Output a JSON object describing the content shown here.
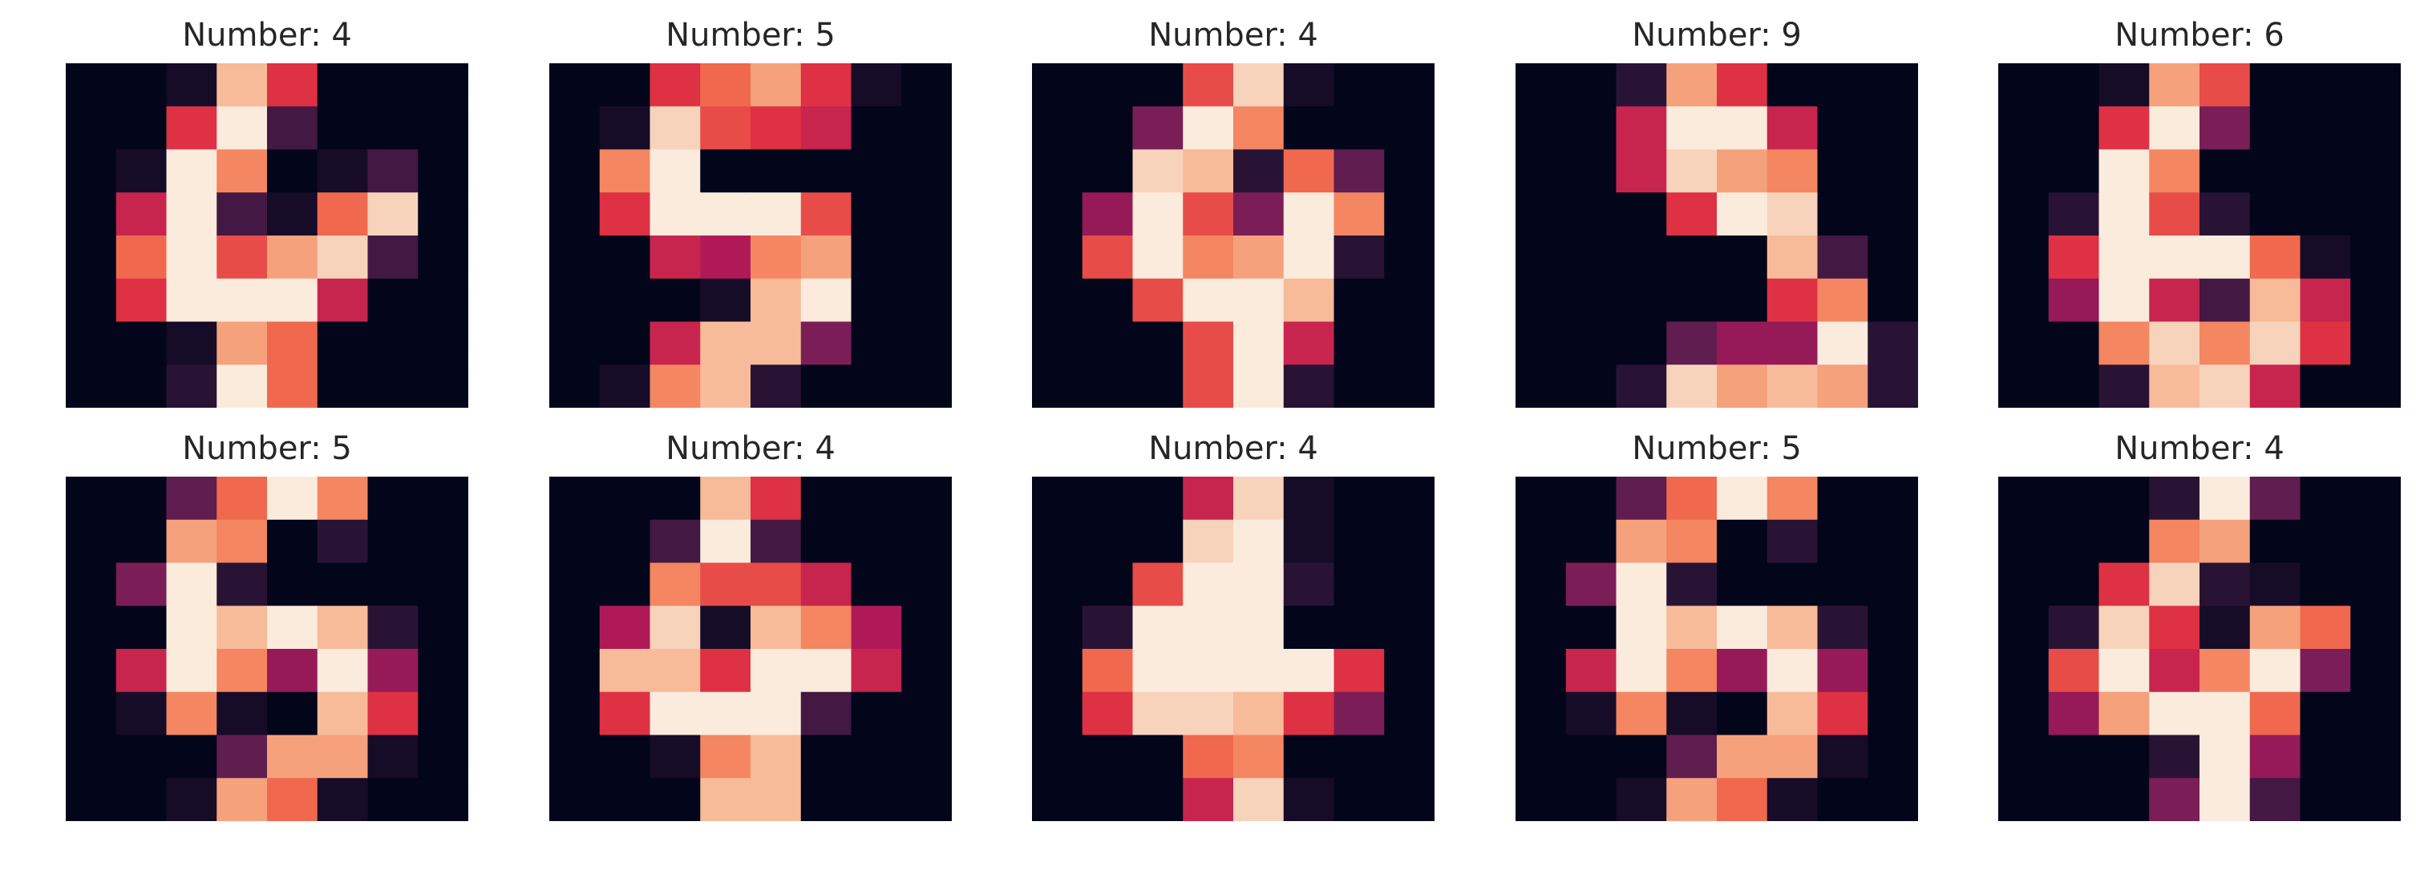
{
  "colors": {
    "colormap": "rocket",
    "stops": [
      "#03051a",
      "#2e1539",
      "#701f57",
      "#ad1759",
      "#e13342",
      "#f37651",
      "#f6b48f",
      "#faebdd"
    ]
  },
  "chart_data": [
    {
      "type": "heatmap",
      "title": "Number: 4",
      "rows": 8,
      "cols": 8,
      "vmin": 0,
      "vmax": 16,
      "z": [
        [
          0,
          0,
          1,
          14,
          9,
          0,
          0,
          0
        ],
        [
          0,
          0,
          9,
          16,
          3,
          0,
          0,
          0
        ],
        [
          0,
          1,
          16,
          12,
          0,
          1,
          3,
          0
        ],
        [
          0,
          8,
          16,
          3,
          1,
          11,
          15,
          0
        ],
        [
          0,
          11,
          16,
          10,
          13,
          15,
          3,
          0
        ],
        [
          0,
          9,
          16,
          16,
          16,
          8,
          0,
          0
        ],
        [
          0,
          0,
          1,
          13,
          11,
          0,
          0,
          0
        ],
        [
          0,
          0,
          2,
          16,
          11,
          0,
          0,
          0
        ]
      ]
    },
    {
      "type": "heatmap",
      "title": "Number: 5",
      "rows": 8,
      "cols": 8,
      "vmin": 0,
      "vmax": 16,
      "z": [
        [
          0,
          0,
          9,
          11,
          13,
          9,
          1,
          0
        ],
        [
          0,
          1,
          15,
          10,
          9,
          8,
          0,
          0
        ],
        [
          0,
          12,
          16,
          0,
          0,
          0,
          0,
          0
        ],
        [
          0,
          9,
          16,
          16,
          16,
          10,
          0,
          0
        ],
        [
          0,
          0,
          8,
          7,
          12,
          13,
          0,
          0
        ],
        [
          0,
          0,
          0,
          1,
          14,
          16,
          0,
          0
        ],
        [
          0,
          0,
          8,
          14,
          14,
          5,
          0,
          0
        ],
        [
          0,
          1,
          12,
          14,
          2,
          0,
          0,
          0
        ]
      ]
    },
    {
      "type": "heatmap",
      "title": "Number: 4",
      "rows": 8,
      "cols": 8,
      "vmin": 0,
      "vmax": 16,
      "z": [
        [
          0,
          0,
          0,
          10,
          15,
          1,
          0,
          0
        ],
        [
          0,
          0,
          5,
          16,
          12,
          0,
          0,
          0
        ],
        [
          0,
          0,
          15,
          14,
          2,
          11,
          4,
          0
        ],
        [
          0,
          6,
          16,
          10,
          5,
          16,
          12,
          0
        ],
        [
          0,
          10,
          16,
          12,
          13,
          16,
          2,
          0
        ],
        [
          0,
          0,
          10,
          16,
          16,
          14,
          0,
          0
        ],
        [
          0,
          0,
          0,
          10,
          16,
          8,
          0,
          0
        ],
        [
          0,
          0,
          0,
          10,
          16,
          2,
          0,
          0
        ]
      ]
    },
    {
      "type": "heatmap",
      "title": "Number: 9",
      "rows": 8,
      "cols": 8,
      "vmin": 0,
      "vmax": 16,
      "z": [
        [
          0,
          0,
          2,
          13,
          9,
          0,
          0,
          0
        ],
        [
          0,
          0,
          8,
          16,
          16,
          8,
          0,
          0
        ],
        [
          0,
          0,
          8,
          15,
          13,
          12,
          0,
          0
        ],
        [
          0,
          0,
          0,
          9,
          16,
          15,
          0,
          0
        ],
        [
          0,
          0,
          0,
          0,
          0,
          14,
          3,
          0
        ],
        [
          0,
          0,
          0,
          0,
          0,
          9,
          12,
          0
        ],
        [
          0,
          0,
          0,
          4,
          6,
          6,
          16,
          2
        ],
        [
          0,
          0,
          2,
          15,
          13,
          14,
          13,
          2
        ]
      ]
    },
    {
      "type": "heatmap",
      "title": "Number: 6",
      "rows": 8,
      "cols": 8,
      "vmin": 0,
      "vmax": 16,
      "z": [
        [
          0,
          0,
          1,
          13,
          10,
          0,
          0,
          0
        ],
        [
          0,
          0,
          9,
          16,
          5,
          0,
          0,
          0
        ],
        [
          0,
          0,
          16,
          12,
          0,
          0,
          0,
          0
        ],
        [
          0,
          2,
          16,
          10,
          2,
          0,
          0,
          0
        ],
        [
          0,
          9,
          16,
          16,
          16,
          11,
          1,
          0
        ],
        [
          0,
          6,
          16,
          8,
          3,
          14,
          8,
          0
        ],
        [
          0,
          0,
          12,
          15,
          12,
          15,
          9,
          0
        ],
        [
          0,
          0,
          2,
          14,
          15,
          8,
          0,
          0
        ]
      ]
    },
    {
      "type": "heatmap",
      "title": "Number: 5",
      "rows": 8,
      "cols": 8,
      "vmin": 0,
      "vmax": 16,
      "z": [
        [
          0,
          0,
          4,
          11,
          16,
          12,
          0,
          0
        ],
        [
          0,
          0,
          13,
          12,
          0,
          2,
          0,
          0
        ],
        [
          0,
          5,
          16,
          2,
          0,
          0,
          0,
          0
        ],
        [
          0,
          0,
          16,
          14,
          16,
          14,
          2,
          0
        ],
        [
          0,
          8,
          16,
          12,
          6,
          16,
          6,
          0
        ],
        [
          0,
          1,
          12,
          1,
          0,
          14,
          9,
          0
        ],
        [
          0,
          0,
          0,
          4,
          13,
          13,
          1,
          0
        ],
        [
          0,
          0,
          1,
          13,
          11,
          1,
          0,
          0
        ]
      ]
    },
    {
      "type": "heatmap",
      "title": "Number: 4",
      "rows": 8,
      "cols": 8,
      "vmin": 0,
      "vmax": 16,
      "z": [
        [
          0,
          0,
          0,
          14,
          9,
          0,
          0,
          0
        ],
        [
          0,
          0,
          3,
          16,
          3,
          0,
          0,
          0
        ],
        [
          0,
          0,
          12,
          10,
          10,
          8,
          0,
          0
        ],
        [
          0,
          7,
          15,
          1,
          14,
          12,
          7,
          0
        ],
        [
          0,
          14,
          14,
          9,
          16,
          16,
          8,
          0
        ],
        [
          0,
          9,
          16,
          16,
          16,
          3,
          0,
          0
        ],
        [
          0,
          0,
          1,
          12,
          14,
          0,
          0,
          0
        ],
        [
          0,
          0,
          0,
          14,
          14,
          0,
          0,
          0
        ]
      ]
    },
    {
      "type": "heatmap",
      "title": "Number: 4",
      "rows": 8,
      "cols": 8,
      "vmin": 0,
      "vmax": 16,
      "z": [
        [
          0,
          0,
          0,
          8,
          15,
          1,
          0,
          0
        ],
        [
          0,
          0,
          0,
          15,
          16,
          1,
          0,
          0
        ],
        [
          0,
          0,
          10,
          16,
          16,
          2,
          0,
          0
        ],
        [
          0,
          2,
          16,
          16,
          16,
          0,
          0,
          0
        ],
        [
          0,
          11,
          16,
          16,
          16,
          16,
          9,
          0
        ],
        [
          0,
          9,
          15,
          15,
          14,
          9,
          5,
          0
        ],
        [
          0,
          0,
          0,
          11,
          12,
          0,
          0,
          0
        ],
        [
          0,
          0,
          0,
          8,
          15,
          1,
          0,
          0
        ]
      ]
    },
    {
      "type": "heatmap",
      "title": "Number: 5",
      "rows": 8,
      "cols": 8,
      "vmin": 0,
      "vmax": 16,
      "z": [
        [
          0,
          0,
          4,
          11,
          16,
          12,
          0,
          0
        ],
        [
          0,
          0,
          13,
          12,
          0,
          2,
          0,
          0
        ],
        [
          0,
          5,
          16,
          2,
          0,
          0,
          0,
          0
        ],
        [
          0,
          0,
          16,
          14,
          16,
          14,
          2,
          0
        ],
        [
          0,
          8,
          16,
          12,
          6,
          16,
          6,
          0
        ],
        [
          0,
          1,
          12,
          1,
          0,
          14,
          9,
          0
        ],
        [
          0,
          0,
          0,
          4,
          13,
          13,
          1,
          0
        ],
        [
          0,
          0,
          1,
          13,
          11,
          1,
          0,
          0
        ]
      ]
    },
    {
      "type": "heatmap",
      "title": "Number: 4",
      "rows": 8,
      "cols": 8,
      "vmin": 0,
      "vmax": 16,
      "z": [
        [
          0,
          0,
          0,
          2,
          16,
          4,
          0,
          0
        ],
        [
          0,
          0,
          0,
          12,
          13,
          0,
          0,
          0
        ],
        [
          0,
          0,
          9,
          15,
          2,
          1,
          0,
          0
        ],
        [
          0,
          2,
          15,
          9,
          1,
          13,
          11,
          0
        ],
        [
          0,
          10,
          16,
          8,
          12,
          16,
          5,
          0
        ],
        [
          0,
          6,
          13,
          16,
          16,
          11,
          0,
          0
        ],
        [
          0,
          0,
          0,
          2,
          16,
          6,
          0,
          0
        ],
        [
          0,
          0,
          0,
          5,
          16,
          3,
          0,
          0
        ]
      ]
    }
  ]
}
